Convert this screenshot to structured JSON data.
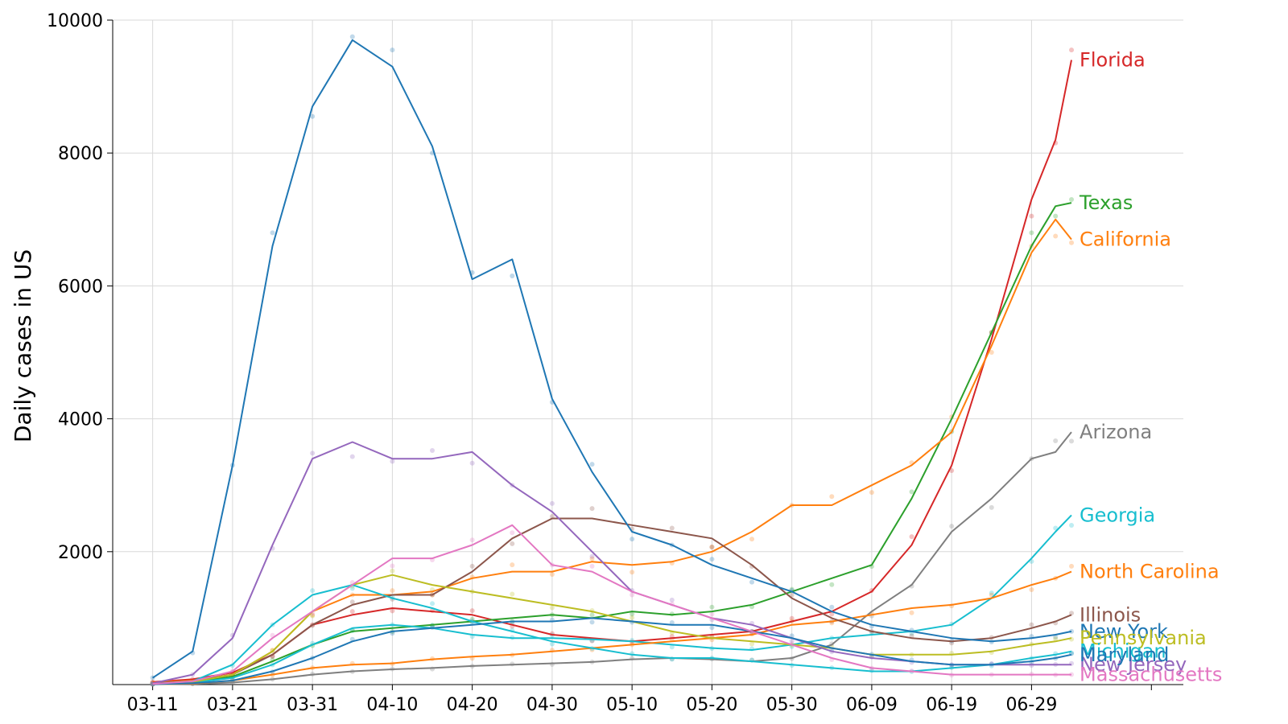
{
  "chart_data": {
    "type": "line",
    "title": "",
    "xlabel": "",
    "ylabel": "Daily cases in US",
    "ylim": [
      0,
      10000
    ],
    "xlim": [
      "03-06",
      "07-18"
    ],
    "grid": true,
    "legend": "direct labels at line ends (right)",
    "x_ticks": [
      "03-11",
      "03-21",
      "03-31",
      "04-10",
      "04-20",
      "04-30",
      "05-10",
      "05-20",
      "05-30",
      "06-09",
      "06-19",
      "06-29"
    ],
    "y_ticks": [
      2000,
      4000,
      6000,
      8000,
      10000
    ],
    "y_tick_labels": [
      "2000",
      "4000",
      "6000",
      "8000",
      "10000"
    ],
    "x": [
      "03-11",
      "03-16",
      "03-21",
      "03-26",
      "03-31",
      "04-05",
      "04-10",
      "04-15",
      "04-20",
      "04-25",
      "04-30",
      "05-05",
      "05-10",
      "05-15",
      "05-20",
      "05-25",
      "05-30",
      "06-04",
      "06-09",
      "06-14",
      "06-19",
      "06-24",
      "06-29",
      "07-02",
      "07-04"
    ],
    "series": [
      {
        "name": "Florida",
        "color": "#d62728",
        "values": [
          40,
          80,
          180,
          450,
          900,
          1050,
          1150,
          1100,
          1050,
          900,
          750,
          700,
          650,
          700,
          750,
          800,
          950,
          1100,
          1400,
          2100,
          3300,
          5200,
          7300,
          8200,
          9400
        ]
      },
      {
        "name": "Texas",
        "color": "#2ca02c",
        "values": [
          20,
          50,
          120,
          350,
          600,
          800,
          850,
          900,
          950,
          1000,
          1050,
          1000,
          1100,
          1050,
          1100,
          1200,
          1400,
          1600,
          1800,
          2800,
          4000,
          5300,
          6600,
          7200,
          7250
        ]
      },
      {
        "name": "California",
        "color": "#ff7f0e",
        "values": [
          30,
          60,
          150,
          500,
          1100,
          1350,
          1350,
          1400,
          1600,
          1700,
          1700,
          1850,
          1800,
          1850,
          2000,
          2300,
          2700,
          2700,
          3000,
          3300,
          3800,
          5100,
          6500,
          7000,
          6700
        ]
      },
      {
        "name": "Arizona",
        "color": "#7f7f7f",
        "values": [
          5,
          10,
          30,
          80,
          150,
          200,
          230,
          250,
          280,
          300,
          320,
          340,
          380,
          400,
          380,
          350,
          400,
          600,
          1100,
          1500,
          2300,
          2800,
          3400,
          3500,
          3800
        ]
      },
      {
        "name": "Georgia",
        "color": "#17becf",
        "values": [
          10,
          30,
          100,
          300,
          600,
          850,
          900,
          850,
          750,
          700,
          700,
          680,
          650,
          600,
          550,
          520,
          600,
          700,
          750,
          800,
          900,
          1300,
          1900,
          2300,
          2550
        ]
      },
      {
        "name": "North Carolina",
        "color": "#ff7f0e",
        "values": [
          5,
          15,
          60,
          150,
          250,
          300,
          320,
          380,
          420,
          450,
          500,
          550,
          600,
          650,
          700,
          750,
          900,
          950,
          1050,
          1150,
          1200,
          1300,
          1500,
          1600,
          1700
        ]
      },
      {
        "name": "Illinois",
        "color": "#8c564b",
        "values": [
          20,
          50,
          150,
          450,
          900,
          1200,
          1350,
          1350,
          1700,
          2200,
          2500,
          2500,
          2400,
          2300,
          2200,
          1800,
          1300,
          1000,
          800,
          700,
          650,
          700,
          850,
          950,
          1050
        ]
      },
      {
        "name": "New York",
        "color": "#1f77b4",
        "values": [
          100,
          500,
          3300,
          6600,
          8700,
          9700,
          9300,
          8100,
          6100,
          6400,
          4300,
          3200,
          2300,
          2100,
          1800,
          1600,
          1400,
          1100,
          900,
          800,
          700,
          650,
          700,
          750,
          800
        ]
      },
      {
        "name": "Pennsylvania",
        "color": "#bcbd22",
        "values": [
          10,
          40,
          150,
          500,
          1100,
          1500,
          1650,
          1500,
          1400,
          1300,
          1200,
          1100,
          950,
          800,
          700,
          650,
          600,
          550,
          450,
          450,
          450,
          500,
          600,
          650,
          700
        ]
      },
      {
        "name": "Michigan",
        "color": "#17becf",
        "values": [
          10,
          50,
          300,
          900,
          1350,
          1500,
          1300,
          1150,
          950,
          800,
          650,
          550,
          450,
          400,
          400,
          350,
          300,
          250,
          200,
          200,
          250,
          300,
          400,
          450,
          500
        ]
      },
      {
        "name": "New Jersey",
        "color": "#9467bd",
        "values": [
          20,
          150,
          700,
          2100,
          3400,
          3650,
          3400,
          3400,
          3500,
          3000,
          2600,
          2000,
          1400,
          1200,
          1000,
          900,
          700,
          500,
          400,
          350,
          300,
          300,
          300,
          300,
          300
        ]
      },
      {
        "name": "Maryland",
        "color": "#1f77b4",
        "values": [
          5,
          20,
          60,
          200,
          400,
          650,
          800,
          850,
          900,
          950,
          950,
          1000,
          950,
          900,
          900,
          800,
          700,
          550,
          450,
          350,
          300,
          300,
          350,
          400,
          450
        ]
      },
      {
        "name": "Massachusetts",
        "color": "#e377c2",
        "values": [
          10,
          50,
          200,
          700,
          1100,
          1500,
          1900,
          1900,
          2100,
          2400,
          1800,
          1700,
          1400,
          1200,
          1000,
          800,
          600,
          400,
          250,
          200,
          150,
          150,
          150,
          150,
          150
        ]
      }
    ]
  }
}
